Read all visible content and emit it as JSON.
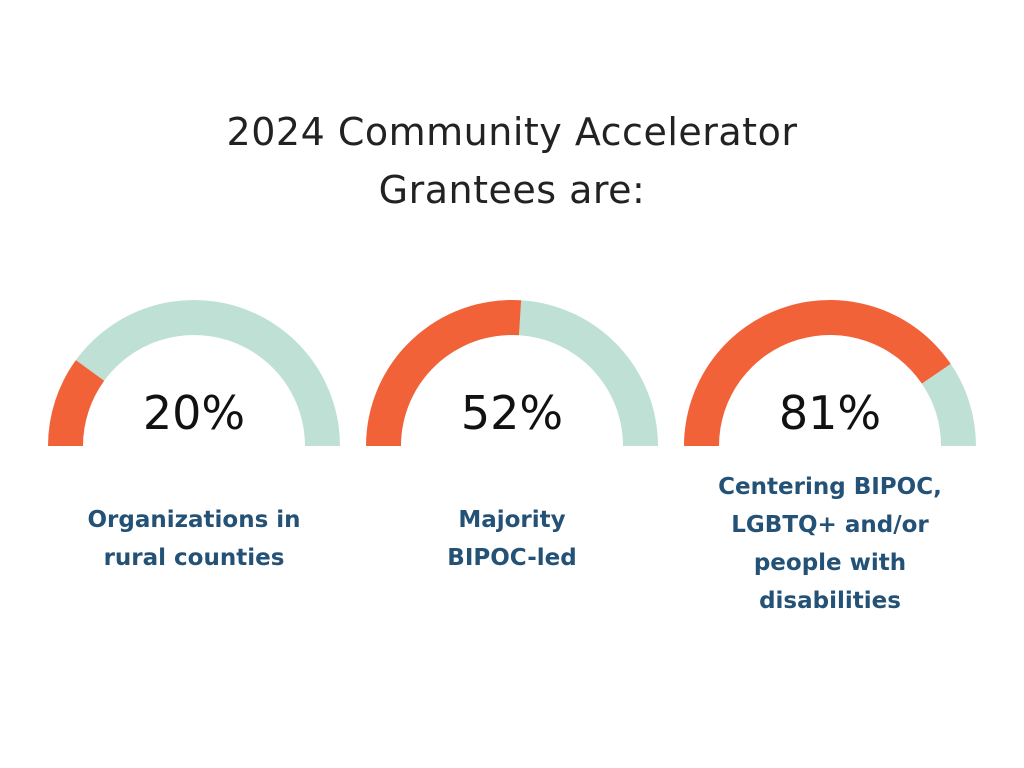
{
  "title": {
    "line1": "2024 Community Accelerator",
    "line2": "Grantees are:"
  },
  "colors": {
    "filled": "#F26239",
    "remaining": "#BFE0D5",
    "label": "#245277",
    "title": "#222222"
  },
  "chart_data": [
    {
      "type": "gauge",
      "value": 20,
      "max": 100,
      "value_label": "20%",
      "label_lines": [
        "Organizations in",
        "rural counties"
      ]
    },
    {
      "type": "gauge",
      "value": 52,
      "max": 100,
      "value_label": "52%",
      "label_lines": [
        "Majority",
        "BIPOC-led"
      ]
    },
    {
      "type": "gauge",
      "value": 81,
      "max": 100,
      "value_label": "81%",
      "label_lines": [
        "Centering BIPOC,",
        "LGBTQ+ and/or",
        "people with",
        "disabilities"
      ]
    }
  ]
}
